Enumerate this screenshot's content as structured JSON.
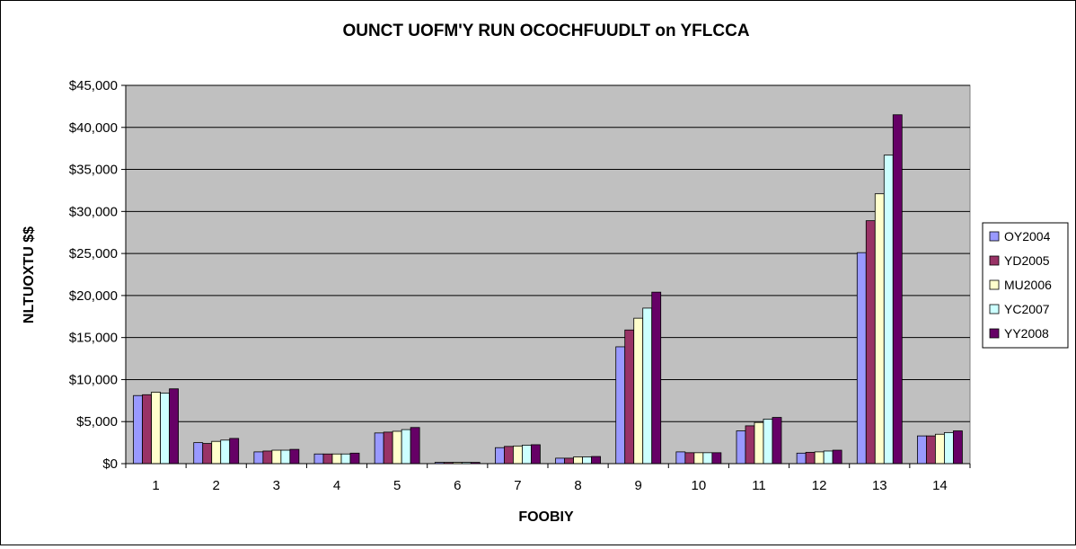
{
  "chart_data": {
    "type": "bar",
    "title": "OUNCT UOFM'Y RUN OCOCHFUUDLT on YFLCCA",
    "xlabel": "FOOBIY",
    "ylabel": "NLTUOXTU $$",
    "categories": [
      "1",
      "2",
      "3",
      "4",
      "5",
      "6",
      "7",
      "8",
      "9",
      "10",
      "11",
      "12",
      "13",
      "14"
    ],
    "ylim": [
      0,
      45000
    ],
    "y_ticks": [
      0,
      5000,
      10000,
      15000,
      20000,
      25000,
      30000,
      35000,
      40000,
      45000
    ],
    "y_tick_labels": [
      "$0",
      "$5,000",
      "$10,000",
      "$15,000",
      "$20,000",
      "$25,000",
      "$30,000",
      "$35,000",
      "$40,000",
      "$45,000"
    ],
    "grid": true,
    "legend_position": "right",
    "plot_background": "#c0c0c0",
    "series": [
      {
        "name": "OY2004",
        "color": "#9999ff",
        "values": [
          8100,
          2500,
          1400,
          1150,
          3650,
          150,
          1900,
          650,
          13900,
          1400,
          3900,
          1250,
          25100,
          3300
        ]
      },
      {
        "name": "YD2005",
        "color": "#993366",
        "values": [
          8200,
          2400,
          1500,
          1150,
          3750,
          150,
          2050,
          650,
          15900,
          1300,
          4500,
          1350,
          28900,
          3300
        ]
      },
      {
        "name": "MU2006",
        "color": "#ffffcc",
        "values": [
          8500,
          2650,
          1600,
          1150,
          3850,
          150,
          2100,
          800,
          17300,
          1300,
          4900,
          1400,
          32100,
          3500
        ]
      },
      {
        "name": "YC2007",
        "color": "#ccffff",
        "values": [
          8400,
          2800,
          1600,
          1150,
          4050,
          150,
          2200,
          800,
          18500,
          1300,
          5300,
          1500,
          36700,
          3700
        ]
      },
      {
        "name": "YY2008",
        "color": "#660066",
        "values": [
          8900,
          3000,
          1700,
          1250,
          4300,
          150,
          2250,
          850,
          20400,
          1300,
          5500,
          1600,
          41500,
          3900
        ]
      }
    ]
  }
}
